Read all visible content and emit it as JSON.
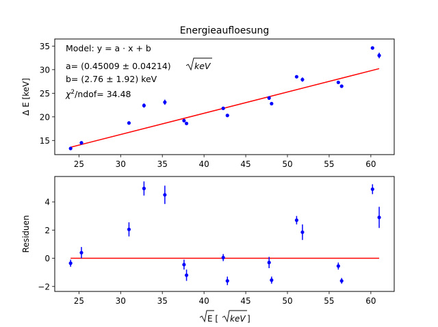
{
  "chart_data": [
    {
      "type": "scatter",
      "title": "Energieaufloesung",
      "ylabel": "Δ E [keV]",
      "xlim": [
        22.1,
        62.8
      ],
      "ylim": [
        12.0,
        36.5
      ],
      "xticks": [
        25,
        30,
        35,
        40,
        45,
        50,
        55,
        60
      ],
      "yticks": [
        15,
        20,
        25,
        30,
        35
      ],
      "grid": false,
      "annotation": {
        "model": "Model: y = a · x + b",
        "a_prefix": "a= (0.45009 ± 0.04214) ",
        "a_unit": "keV",
        "b": "b= (2.76 ± 1.92) keV",
        "chi_chi": "χ",
        "chi_sup": "2",
        "chi_rest": "/ndof= 34.48"
      },
      "series": [
        {
          "type": "errorbar",
          "color": "#0000ff",
          "points": [
            {
              "x": 24.0,
              "y": 13.3,
              "err": 0.25
            },
            {
              "x": 25.3,
              "y": 14.5,
              "err": 0.25
            },
            {
              "x": 31.0,
              "y": 18.7,
              "err": 0.35
            },
            {
              "x": 32.8,
              "y": 22.4,
              "err": 0.45
            },
            {
              "x": 35.3,
              "y": 23.1,
              "err": 0.55
            },
            {
              "x": 37.6,
              "y": 19.2,
              "err": 0.35
            },
            {
              "x": 37.9,
              "y": 18.6,
              "err": 0.35
            },
            {
              "x": 42.3,
              "y": 21.8,
              "err": 0.3
            },
            {
              "x": 42.8,
              "y": 20.3,
              "err": 0.3
            },
            {
              "x": 47.8,
              "y": 24.0,
              "err": 0.4
            },
            {
              "x": 48.1,
              "y": 22.8,
              "err": 0.3
            },
            {
              "x": 51.1,
              "y": 28.5,
              "err": 0.3
            },
            {
              "x": 51.8,
              "y": 27.9,
              "err": 0.45
            },
            {
              "x": 56.1,
              "y": 27.3,
              "err": 0.3
            },
            {
              "x": 56.5,
              "y": 26.5,
              "err": 0.3
            },
            {
              "x": 60.2,
              "y": 34.6,
              "err": 0.3
            },
            {
              "x": 61.0,
              "y": 33.0,
              "err": 0.6
            }
          ]
        },
        {
          "type": "line",
          "color": "#ff0000",
          "x": [
            24.0,
            61.0
          ],
          "y": [
            13.56,
            30.22
          ]
        }
      ]
    },
    {
      "type": "scatter",
      "xlabel_prefix": "E [",
      "xlabel_unit": "keV",
      "xlabel_suffix": "]",
      "ylabel": "Residuen",
      "xlim": [
        22.1,
        62.8
      ],
      "ylim": [
        -2.35,
        5.8
      ],
      "xticks": [
        25,
        30,
        35,
        40,
        45,
        50,
        55,
        60
      ],
      "yticks": [
        -2,
        0,
        2,
        4
      ],
      "grid": false,
      "series": [
        {
          "type": "errorbar",
          "color": "#0000ff",
          "points": [
            {
              "x": 24.0,
              "y": -0.35,
              "err": 0.25
            },
            {
              "x": 25.3,
              "y": 0.4,
              "err": 0.4
            },
            {
              "x": 31.0,
              "y": 2.05,
              "err": 0.5
            },
            {
              "x": 32.8,
              "y": 4.95,
              "err": 0.5
            },
            {
              "x": 35.3,
              "y": 4.5,
              "err": 0.65
            },
            {
              "x": 37.6,
              "y": -0.45,
              "err": 0.35
            },
            {
              "x": 37.9,
              "y": -1.2,
              "err": 0.4
            },
            {
              "x": 42.3,
              "y": 0.05,
              "err": 0.25
            },
            {
              "x": 42.8,
              "y": -1.6,
              "err": 0.3
            },
            {
              "x": 47.8,
              "y": -0.3,
              "err": 0.4
            },
            {
              "x": 48.1,
              "y": -1.55,
              "err": 0.25
            },
            {
              "x": 51.1,
              "y": 2.7,
              "err": 0.3
            },
            {
              "x": 51.8,
              "y": 1.85,
              "err": 0.55
            },
            {
              "x": 56.1,
              "y": -0.55,
              "err": 0.25
            },
            {
              "x": 56.5,
              "y": -1.6,
              "err": 0.2
            },
            {
              "x": 60.2,
              "y": 4.9,
              "err": 0.35
            },
            {
              "x": 61.0,
              "y": 2.9,
              "err": 0.75
            }
          ]
        },
        {
          "type": "line",
          "color": "#ff0000",
          "x": [
            24.0,
            61.0
          ],
          "y": [
            0,
            0
          ]
        }
      ]
    }
  ]
}
